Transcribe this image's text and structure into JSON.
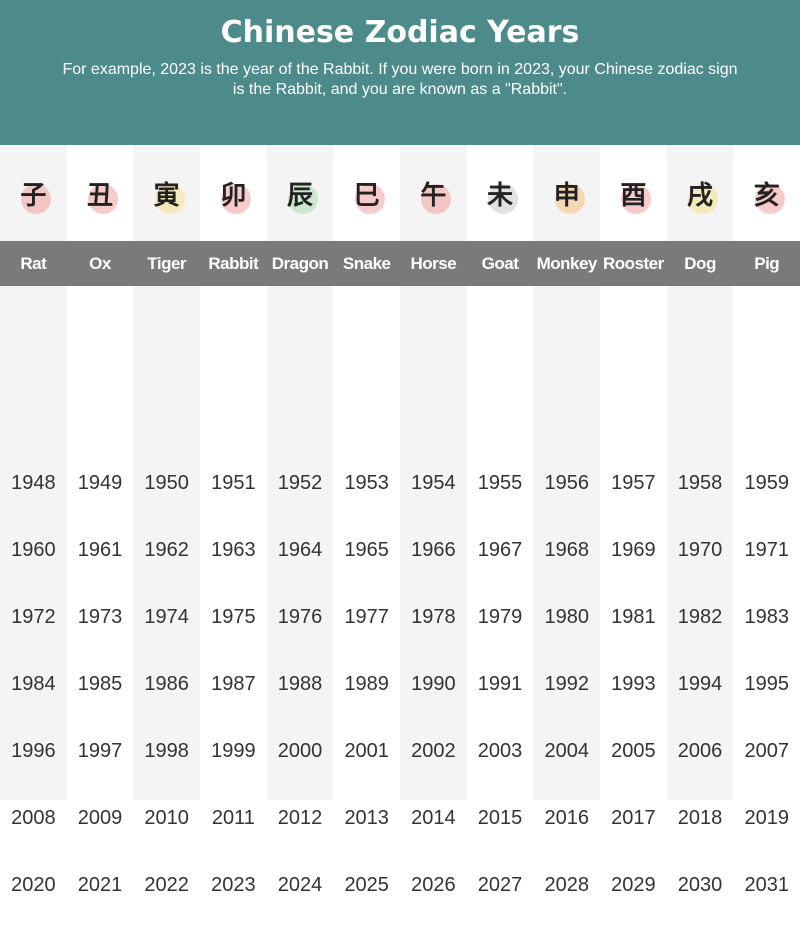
{
  "header": {
    "title": "Chinese Zodiac Years",
    "subtitle": "For example, 2023 is the year of the Rabbit. If you were born in 2023, your Chinese zodiac sign is the Rabbit, and you are known as a \"Rabbit\"."
  },
  "animals": [
    {
      "name": "Rat",
      "glyph": "子",
      "color": "#f2a0a0",
      "years": [
        "1948",
        "1960",
        "1972",
        "1984",
        "1996",
        "2008",
        "2020"
      ]
    },
    {
      "name": "Ox",
      "glyph": "丑",
      "color": "#f2a0a0",
      "years": [
        "1949",
        "1961",
        "1973",
        "1985",
        "1997",
        "2009",
        "2021"
      ]
    },
    {
      "name": "Tiger",
      "glyph": "寅",
      "color": "#f5e08a",
      "years": [
        "1950",
        "1962",
        "1974",
        "1986",
        "1998",
        "2010",
        "2022"
      ]
    },
    {
      "name": "Rabbit",
      "glyph": "卯",
      "color": "#f2a0a0",
      "years": [
        "1951",
        "1963",
        "1975",
        "1987",
        "1999",
        "2011",
        "2023"
      ]
    },
    {
      "name": "Dragon",
      "glyph": "辰",
      "color": "#a8dcb0",
      "years": [
        "1952",
        "1964",
        "1976",
        "1988",
        "2000",
        "2012",
        "2024"
      ]
    },
    {
      "name": "Snake",
      "glyph": "巳",
      "color": "#f2a0a0",
      "years": [
        "1953",
        "1965",
        "1977",
        "1989",
        "2001",
        "2013",
        "2025"
      ]
    },
    {
      "name": "Horse",
      "glyph": "午",
      "color": "#f2a0a0",
      "years": [
        "1954",
        "1966",
        "1978",
        "1990",
        "2002",
        "2014",
        "2026"
      ]
    },
    {
      "name": "Goat",
      "glyph": "未",
      "color": "#c8c8c8",
      "years": [
        "1955",
        "1967",
        "1979",
        "1991",
        "2003",
        "2015",
        "2027"
      ]
    },
    {
      "name": "Monkey",
      "glyph": "申",
      "color": "#f5c080",
      "years": [
        "1956",
        "1968",
        "1980",
        "1992",
        "2004",
        "2016",
        "2028"
      ]
    },
    {
      "name": "Rooster",
      "glyph": "酉",
      "color": "#f2a0a0",
      "years": [
        "1957",
        "1969",
        "1981",
        "1993",
        "2005",
        "2017",
        "2029"
      ]
    },
    {
      "name": "Dog",
      "glyph": "戌",
      "color": "#f5e08a",
      "years": [
        "1958",
        "1970",
        "1982",
        "1994",
        "2006",
        "2018",
        "2030"
      ]
    },
    {
      "name": "Pig",
      "glyph": "亥",
      "color": "#f2a0a0",
      "years": [
        "1959",
        "1971",
        "1983",
        "1995",
        "2007",
        "2019",
        "2031"
      ]
    }
  ]
}
